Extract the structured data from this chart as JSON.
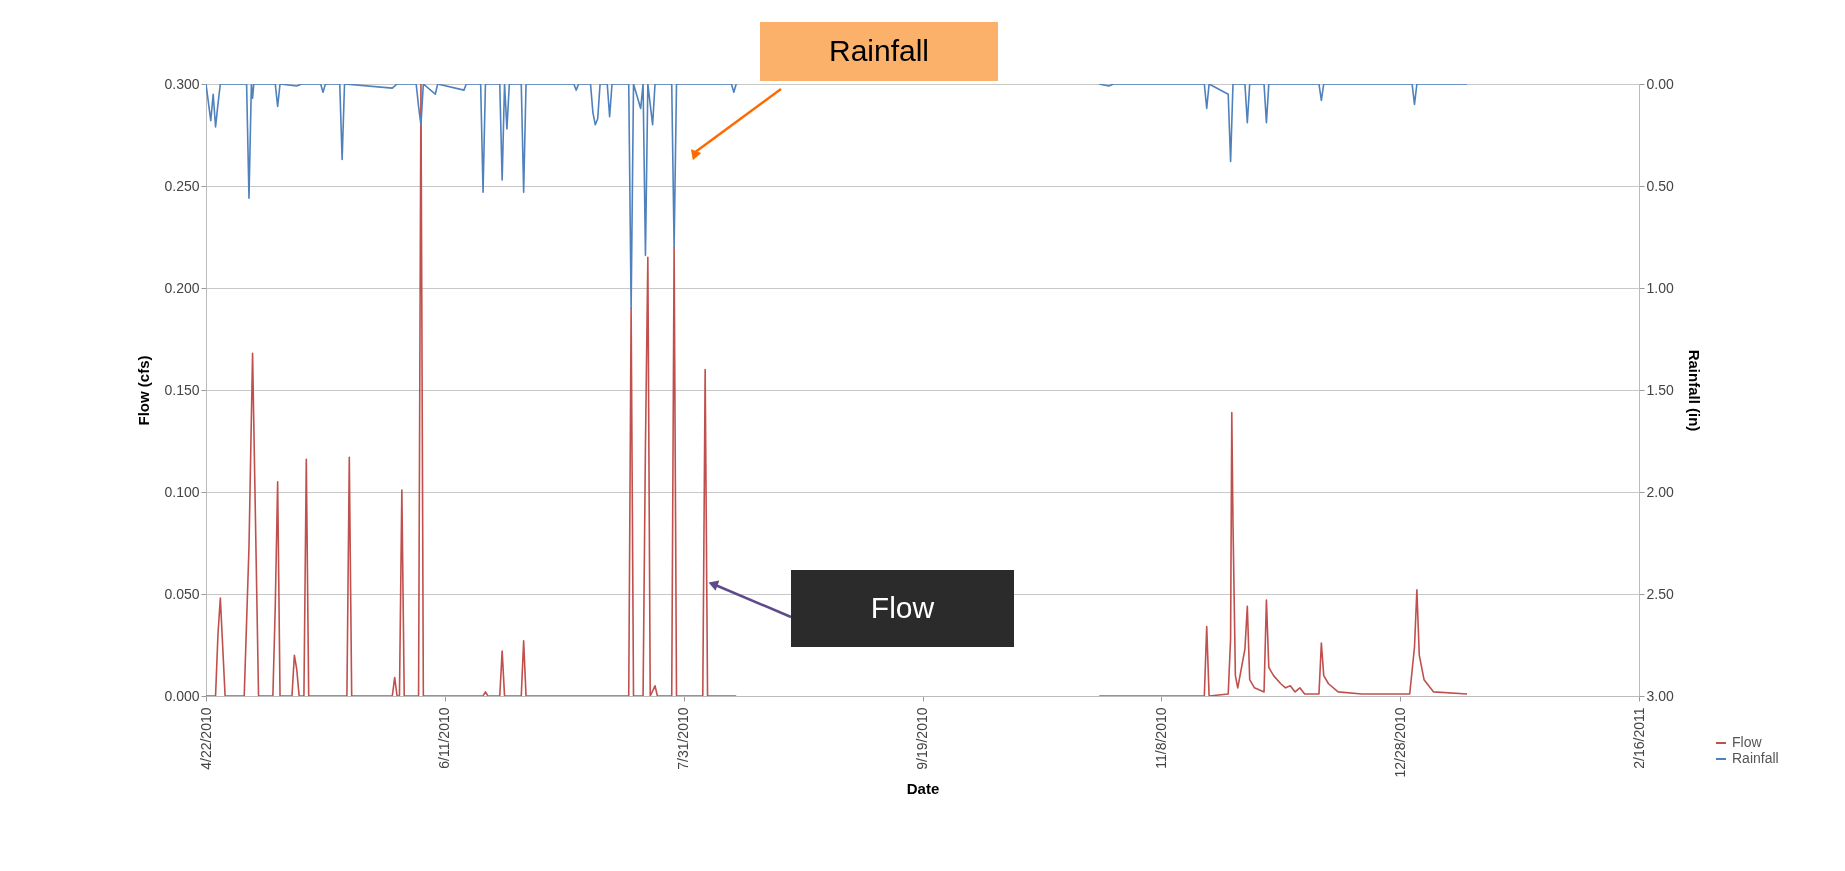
{
  "chart_data": {
    "type": "line",
    "xlabel": "Date",
    "ylabel": "Flow (cfs)",
    "y2label": "Rainfall (in)",
    "annotations": [
      "Rainfall",
      "Flow"
    ],
    "xlim": [
      "2010-04-22",
      "2011-02-16"
    ],
    "xticks": [
      {
        "value": "2010-04-22",
        "label": "4/22/2010"
      },
      {
        "value": "2010-06-11",
        "label": "6/11/2010"
      },
      {
        "value": "2010-07-31",
        "label": "7/31/2010"
      },
      {
        "value": "2010-09-19",
        "label": "9/19/2010"
      },
      {
        "value": "2010-11-08",
        "label": "11/8/2010"
      },
      {
        "value": "2010-12-28",
        "label": "12/28/2010"
      },
      {
        "value": "2011-02-16",
        "label": "2/16/2011"
      }
    ],
    "ylim": [
      0,
      0.3
    ],
    "yticks": [
      {
        "value": 0,
        "label": "0.000"
      },
      {
        "value": 0.05,
        "label": "0.050"
      },
      {
        "value": 0.1,
        "label": "0.100"
      },
      {
        "value": 0.15,
        "label": "0.150"
      },
      {
        "value": 0.2,
        "label": "0.200"
      },
      {
        "value": 0.25,
        "label": "0.250"
      },
      {
        "value": 0.3,
        "label": "0.300"
      }
    ],
    "y2lim": [
      3.0,
      0.0
    ],
    "y2ticks": [
      {
        "value": 0,
        "label": "0.00"
      },
      {
        "value": 0.5,
        "label": "0.50"
      },
      {
        "value": 1.0,
        "label": "1.00"
      },
      {
        "value": 1.5,
        "label": "1.50"
      },
      {
        "value": 2.0,
        "label": "2.00"
      },
      {
        "value": 2.5,
        "label": "2.50"
      },
      {
        "value": 3.0,
        "label": "3.00"
      }
    ],
    "grid": "y",
    "legend": "bottom right",
    "marker": "none",
    "line_style": "solid",
    "series": [
      {
        "name": "Flow",
        "color": "#c0504d",
        "x": [
          "2010-04-22",
          "2010-04-24",
          "2010-04-24T12:00",
          "2010-04-25",
          "2010-04-26",
          "2010-04-30",
          "2010-05-01",
          "2010-05-01T18:00",
          "2010-05-02T12:00",
          "2010-05-03",
          "2010-05-06",
          "2010-05-06T12:00",
          "2010-05-07",
          "2010-05-07T12:00",
          "2010-05-10",
          "2010-05-10T12:00",
          "2010-05-11",
          "2010-05-11T12:00",
          "2010-05-12T12:00",
          "2010-05-13",
          "2010-05-13T12:00",
          "2010-05-21T12:00",
          "2010-05-22",
          "2010-05-22T12:00",
          "2010-05-31",
          "2010-05-31T12:00",
          "2010-06-01",
          "2010-06-01T12:00",
          "2010-06-02",
          "2010-06-02T12:00",
          "2010-06-05T12:00",
          "2010-06-06",
          "2010-06-06T12:00",
          "2010-06-19",
          "2010-06-19T12:00",
          "2010-06-20",
          "2010-06-22T12:00",
          "2010-06-23",
          "2010-06-23T12:00",
          "2010-06-27",
          "2010-06-27T12:00",
          "2010-06-28",
          "2010-07-19T12:00",
          "2010-07-20",
          "2010-07-20T12:00",
          "2010-07-22T12:00",
          "2010-07-23",
          "2010-07-23T12:00",
          "2010-07-24",
          "2010-07-25",
          "2010-07-25T12:00",
          "2010-07-28T12:00",
          "2010-07-29",
          "2010-07-29T12:00",
          "2010-08-04",
          "2010-08-04T12:00",
          "2010-08-05",
          "2010-08-11",
          "2010-09-01",
          "2010-10-26",
          "2010-11-17",
          "2010-11-17T12:00",
          "2010-11-18",
          "2010-11-22",
          "2010-11-22T12:00",
          "2010-11-22T18:00",
          "2010-11-23",
          "2010-11-23T12:00",
          "2010-11-24",
          "2010-11-25T12:00",
          "2010-11-26",
          "2010-11-26T12:00",
          "2010-11-27T12:00",
          "2010-11-29T12:00",
          "2010-11-30",
          "2010-11-30T12:00",
          "2010-12-01T12:00",
          "2010-12-03",
          "2010-12-04",
          "2010-12-05",
          "2010-12-06",
          "2010-12-07",
          "2010-12-08",
          "2010-12-11",
          "2010-12-11T12:00",
          "2010-12-12",
          "2010-12-13",
          "2010-12-15",
          "2010-12-20",
          "2010-12-30",
          "2010-12-31",
          "2010-12-31T12:00",
          "2011-01-01",
          "2011-01-02",
          "2011-01-04",
          "2011-01-11"
        ],
        "values": [
          0,
          0,
          0.03,
          0.048,
          0,
          0,
          0.073,
          0.168,
          0.067,
          0,
          0,
          0.044,
          0.105,
          0,
          0,
          0.02,
          0.013,
          0,
          0,
          0.116,
          0,
          0,
          0.117,
          0,
          0,
          0.009,
          0,
          0,
          0.101,
          0,
          0,
          0.3,
          0,
          0,
          0.002,
          0,
          0,
          0.022,
          0,
          0,
          0.027,
          0,
          0,
          0.19,
          0,
          0,
          0.123,
          0.215,
          0,
          0.005,
          0,
          0,
          0.22,
          0,
          0,
          0.16,
          0,
          0,
          null,
          0,
          0,
          0.034,
          0,
          0.001,
          0.028,
          0.139,
          0.085,
          0.01,
          0.004,
          0.023,
          0.044,
          0.008,
          0.004,
          0.002,
          0.047,
          0.014,
          0.01,
          0.006,
          0.004,
          0.005,
          0.002,
          0.004,
          0.001,
          0.001,
          0.026,
          0.01,
          0.006,
          0.002,
          0.001,
          0.001,
          0.024,
          0.052,
          0.02,
          0.008,
          0.002,
          0.001
        ]
      },
      {
        "name": "Rainfall",
        "color": "#4f81bd",
        "axis": "y2",
        "x": [
          "2010-04-22",
          "2010-04-23",
          "2010-04-23T12:00",
          "2010-04-24",
          "2010-04-24T12:00",
          "2010-04-25",
          "2010-04-30T12:00",
          "2010-05-01",
          "2010-05-01T12:00",
          "2010-05-01T18:00",
          "2010-05-02",
          "2010-05-06T12:00",
          "2010-05-07",
          "2010-05-07T12:00",
          "2010-05-11",
          "2010-05-12",
          "2010-05-16",
          "2010-05-16T12:00",
          "2010-05-17",
          "2010-05-20",
          "2010-05-20T12:00",
          "2010-05-21",
          "2010-05-31",
          "2010-06-01",
          "2010-06-05",
          "2010-06-05T12:00",
          "2010-06-06",
          "2010-06-06T12:00",
          "2010-06-09",
          "2010-06-09T12:00",
          "2010-06-15",
          "2010-06-15T12:00",
          "2010-06-18T12:00",
          "2010-06-19",
          "2010-06-19T12:00",
          "2010-06-22T12:00",
          "2010-06-23",
          "2010-06-23T12:00",
          "2010-06-24",
          "2010-06-24T12:00",
          "2010-06-27",
          "2010-06-27T12:00",
          "2010-06-28",
          "2010-07-08",
          "2010-07-08T12:00",
          "2010-07-09",
          "2010-07-11T12:00",
          "2010-07-12",
          "2010-07-12T12:00",
          "2010-07-13",
          "2010-07-13T12:00",
          "2010-07-15",
          "2010-07-15T12:00",
          "2010-07-16",
          "2010-07-19T12:00",
          "2010-07-20",
          "2010-07-20T12:00",
          "2010-07-22",
          "2010-07-22T12:00",
          "2010-07-23",
          "2010-07-23T12:00",
          "2010-07-24T12:00",
          "2010-07-25",
          "2010-07-28T12:00",
          "2010-07-29",
          "2010-07-29T12:00",
          "2010-08-10",
          "2010-08-10T12:00",
          "2010-08-11",
          "2010-09-01",
          "2010-10-26",
          "2010-10-28",
          "2010-10-29",
          "2010-11-17",
          "2010-11-17T12:00",
          "2010-11-18",
          "2010-11-22",
          "2010-11-22T12:00",
          "2010-11-23",
          "2010-11-25T12:00",
          "2010-11-26",
          "2010-11-26T12:00",
          "2010-11-29T12:00",
          "2010-11-30",
          "2010-11-30T12:00",
          "2010-12-11",
          "2010-12-11T12:00",
          "2010-12-12",
          "2010-12-30T12:00",
          "2010-12-31",
          "2010-12-31T12:00",
          "2011-01-11"
        ],
        "values": [
          0,
          0.18,
          0.05,
          0.21,
          0.1,
          0,
          0,
          0.56,
          0,
          0.07,
          0,
          0,
          0.11,
          0,
          0.01,
          0,
          0,
          0.04,
          0,
          0,
          0.37,
          0,
          0.02,
          0,
          0,
          0.11,
          0.2,
          0,
          0.05,
          0,
          0.03,
          0,
          0,
          0.53,
          0,
          0,
          0.47,
          0,
          0.22,
          0,
          0,
          0.53,
          0,
          0,
          0.03,
          0,
          0,
          0.14,
          0.2,
          0.17,
          0,
          0,
          0.16,
          0,
          0,
          1.1,
          0,
          0.12,
          0,
          0.84,
          0,
          0.2,
          0,
          0,
          0.8,
          0,
          0,
          0.04,
          0,
          null,
          0,
          0.01,
          0,
          0,
          0.12,
          0,
          0.05,
          0.38,
          0,
          0,
          0.19,
          0,
          0,
          0.19,
          0,
          0,
          0.08,
          0,
          0,
          0.1,
          0,
          0
        ]
      }
    ]
  }
}
